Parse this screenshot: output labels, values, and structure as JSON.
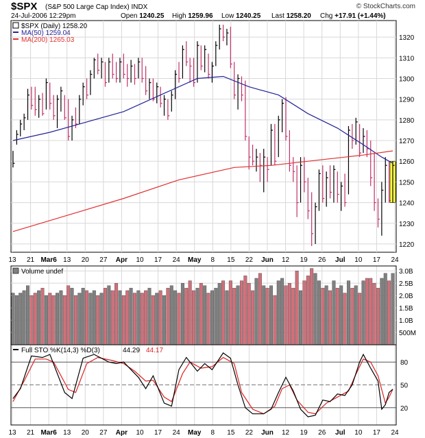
{
  "header": {
    "symbol": "$SPX",
    "name": "(S&P 500 Large Cap Index)",
    "exchange": "INDX",
    "date": "24-Jul-2006 12:29pm",
    "brand": "© StockCharts.com",
    "open_label": "Open",
    "open": "1240.25",
    "high_label": "High",
    "high": "1259.96",
    "low_label": "Low",
    "low": "1240.25",
    "last_label": "Last",
    "last": "1258.20",
    "chg_label": "Chg",
    "chg": "+17.91 (+1.44%)"
  },
  "legend": {
    "price": "$SPX (Daily) 1258.20",
    "ma50": "MA(50) 1259.04",
    "ma200": "MA(200) 1265.03",
    "volume": "Volume undef",
    "sto_prefix": "Full STO %K(14,3) %D(3)",
    "sto_k": "44.29",
    "sto_d": "44.17"
  },
  "colors": {
    "up_bar": "#000000",
    "down_bar": "#c0306a",
    "ma50": "#22229a",
    "ma200": "#e03030",
    "vol_up": "#808080",
    "vol_down": "#d0707a",
    "highlight": "#ffff40",
    "grid": "#d8d8d8"
  },
  "chart_data": {
    "type": "ohlc",
    "price_axis": {
      "ticks": [
        "1220",
        "1230",
        "1240",
        "1250",
        "1260",
        "1270",
        "1280",
        "1290",
        "1300",
        "1310",
        "1320"
      ],
      "range": [
        1216,
        1328
      ]
    },
    "volume_axis": {
      "ticks": [
        "500M",
        "1.0B",
        "1.5B",
        "2.0B",
        "2.5B",
        "3.0B"
      ],
      "range": [
        0,
        3.2
      ]
    },
    "sto_axis": {
      "ticks": [
        "20",
        "50",
        "80"
      ],
      "range": [
        0,
        100
      ]
    },
    "x_ticks": [
      "13",
      "21",
      "Mar6",
      "13",
      "20",
      "27",
      "Apr",
      "10",
      "17",
      "24",
      "May",
      "8",
      "15",
      "22",
      "Jun",
      "12",
      "19",
      "26",
      "Jul",
      "10",
      "17",
      "24"
    ],
    "bars": [
      {
        "h": 1265,
        "l": 1257,
        "c": 1259,
        "v": 2.1
      },
      {
        "h": 1275,
        "l": 1268,
        "c": 1273,
        "v": 2.0
      },
      {
        "h": 1280,
        "l": 1272,
        "c": 1278,
        "v": 2.1
      },
      {
        "h": 1283,
        "l": 1275,
        "c": 1281,
        "v": 2.2
      },
      {
        "h": 1295,
        "l": 1280,
        "c": 1292,
        "v": 2.4
      },
      {
        "h": 1296,
        "l": 1285,
        "c": 1287,
        "v": 2.0
      },
      {
        "h": 1296,
        "l": 1282,
        "c": 1285,
        "v": 2.1
      },
      {
        "h": 1292,
        "l": 1281,
        "c": 1290,
        "v": 2.2
      },
      {
        "h": 1293,
        "l": 1282,
        "c": 1283,
        "v": 2.3
      },
      {
        "h": 1300,
        "l": 1285,
        "c": 1298,
        "v": 2.0
      },
      {
        "h": 1298,
        "l": 1285,
        "c": 1288,
        "v": 2.1
      },
      {
        "h": 1292,
        "l": 1280,
        "c": 1282,
        "v": 2.0
      },
      {
        "h": 1292,
        "l": 1276,
        "c": 1290,
        "v": 2.1
      },
      {
        "h": 1296,
        "l": 1284,
        "c": 1294,
        "v": 2.2
      },
      {
        "h": 1292,
        "l": 1280,
        "c": 1281,
        "v": 2.0
      },
      {
        "h": 1290,
        "l": 1270,
        "c": 1272,
        "v": 2.4
      },
      {
        "h": 1282,
        "l": 1270,
        "c": 1280,
        "v": 2.3
      },
      {
        "h": 1286,
        "l": 1276,
        "c": 1278,
        "v": 2.0
      },
      {
        "h": 1292,
        "l": 1278,
        "c": 1290,
        "v": 2.1
      },
      {
        "h": 1298,
        "l": 1287,
        "c": 1296,
        "v": 2.3
      },
      {
        "h": 1300,
        "l": 1290,
        "c": 1292,
        "v": 2.2
      },
      {
        "h": 1304,
        "l": 1292,
        "c": 1302,
        "v": 2.1
      },
      {
        "h": 1310,
        "l": 1300,
        "c": 1309,
        "v": 2.2
      },
      {
        "h": 1312,
        "l": 1302,
        "c": 1304,
        "v": 2.0
      },
      {
        "h": 1310,
        "l": 1300,
        "c": 1308,
        "v": 2.1
      },
      {
        "h": 1308,
        "l": 1296,
        "c": 1298,
        "v": 2.3
      },
      {
        "h": 1310,
        "l": 1298,
        "c": 1308,
        "v": 2.4
      },
      {
        "h": 1312,
        "l": 1300,
        "c": 1302,
        "v": 2.2
      },
      {
        "h": 1308,
        "l": 1298,
        "c": 1300,
        "v": 2.5
      },
      {
        "h": 1310,
        "l": 1298,
        "c": 1308,
        "v": 2.2
      },
      {
        "h": 1312,
        "l": 1300,
        "c": 1302,
        "v": 2.0
      },
      {
        "h": 1307,
        "l": 1296,
        "c": 1300,
        "v": 2.2
      },
      {
        "h": 1309,
        "l": 1298,
        "c": 1306,
        "v": 2.3
      },
      {
        "h": 1307,
        "l": 1297,
        "c": 1300,
        "v": 2.1
      },
      {
        "h": 1310,
        "l": 1300,
        "c": 1308,
        "v": 2.2
      },
      {
        "h": 1310,
        "l": 1298,
        "c": 1300,
        "v": 2.1
      },
      {
        "h": 1306,
        "l": 1292,
        "c": 1294,
        "v": 2.2
      },
      {
        "h": 1300,
        "l": 1290,
        "c": 1298,
        "v": 2.3
      },
      {
        "h": 1300,
        "l": 1289,
        "c": 1290,
        "v": 2.0
      },
      {
        "h": 1298,
        "l": 1288,
        "c": 1296,
        "v": 2.1
      },
      {
        "h": 1296,
        "l": 1286,
        "c": 1288,
        "v": 2.2
      },
      {
        "h": 1292,
        "l": 1282,
        "c": 1290,
        "v": 2.0
      },
      {
        "h": 1290,
        "l": 1280,
        "c": 1282,
        "v": 2.3
      },
      {
        "h": 1294,
        "l": 1284,
        "c": 1292,
        "v": 2.4
      },
      {
        "h": 1304,
        "l": 1290,
        "c": 1302,
        "v": 2.2
      },
      {
        "h": 1308,
        "l": 1298,
        "c": 1300,
        "v": 2.1
      },
      {
        "h": 1316,
        "l": 1300,
        "c": 1314,
        "v": 2.5
      },
      {
        "h": 1318,
        "l": 1306,
        "c": 1308,
        "v": 2.3
      },
      {
        "h": 1310,
        "l": 1298,
        "c": 1306,
        "v": 2.6
      },
      {
        "h": 1310,
        "l": 1296,
        "c": 1298,
        "v": 2.2
      },
      {
        "h": 1318,
        "l": 1298,
        "c": 1316,
        "v": 2.3
      },
      {
        "h": 1316,
        "l": 1304,
        "c": 1306,
        "v": 2.5
      },
      {
        "h": 1316,
        "l": 1303,
        "c": 1314,
        "v": 2.4
      },
      {
        "h": 1312,
        "l": 1300,
        "c": 1302,
        "v": 2.1
      },
      {
        "h": 1308,
        "l": 1298,
        "c": 1306,
        "v": 2.2
      },
      {
        "h": 1318,
        "l": 1306,
        "c": 1316,
        "v": 2.3
      },
      {
        "h": 1326,
        "l": 1314,
        "c": 1324,
        "v": 2.5
      },
      {
        "h": 1326,
        "l": 1318,
        "c": 1320,
        "v": 2.6
      },
      {
        "h": 1324,
        "l": 1316,
        "c": 1322,
        "v": 2.2
      },
      {
        "h": 1325,
        "l": 1305,
        "c": 1307,
        "v": 2.6
      },
      {
        "h": 1308,
        "l": 1290,
        "c": 1292,
        "v": 2.3
      },
      {
        "h": 1302,
        "l": 1285,
        "c": 1300,
        "v": 2.4
      },
      {
        "h": 1301,
        "l": 1289,
        "c": 1292,
        "v": 2.6
      },
      {
        "h": 1299,
        "l": 1270,
        "c": 1272,
        "v": 2.8
      },
      {
        "h": 1272,
        "l": 1256,
        "c": 1262,
        "v": 2.5
      },
      {
        "h": 1268,
        "l": 1258,
        "c": 1260,
        "v": 2.2
      },
      {
        "h": 1266,
        "l": 1255,
        "c": 1262,
        "v": 2.7
      },
      {
        "h": 1264,
        "l": 1250,
        "c": 1258,
        "v": 2.9
      },
      {
        "h": 1266,
        "l": 1245,
        "c": 1262,
        "v": 2.4
      },
      {
        "h": 1262,
        "l": 1250,
        "c": 1256,
        "v": 2.3
      },
      {
        "h": 1278,
        "l": 1258,
        "c": 1275,
        "v": 2.4
      },
      {
        "h": 1278,
        "l": 1258,
        "c": 1260,
        "v": 2.0
      },
      {
        "h": 1282,
        "l": 1262,
        "c": 1280,
        "v": 2.6
      },
      {
        "h": 1290,
        "l": 1274,
        "c": 1288,
        "v": 2.7
      },
      {
        "h": 1291,
        "l": 1270,
        "c": 1272,
        "v": 2.4
      },
      {
        "h": 1275,
        "l": 1255,
        "c": 1258,
        "v": 2.5
      },
      {
        "h": 1262,
        "l": 1250,
        "c": 1255,
        "v": 2.3
      },
      {
        "h": 1258,
        "l": 1233,
        "c": 1240,
        "v": 3.0
      },
      {
        "h": 1262,
        "l": 1240,
        "c": 1258,
        "v": 2.2
      },
      {
        "h": 1262,
        "l": 1245,
        "c": 1250,
        "v": 2.6
      },
      {
        "h": 1252,
        "l": 1232,
        "c": 1236,
        "v": 2.8
      },
      {
        "h": 1245,
        "l": 1219,
        "c": 1225,
        "v": 3.1
      },
      {
        "h": 1240,
        "l": 1220,
        "c": 1238,
        "v": 2.9
      },
      {
        "h": 1256,
        "l": 1236,
        "c": 1254,
        "v": 2.6
      },
      {
        "h": 1258,
        "l": 1240,
        "c": 1242,
        "v": 2.3
      },
      {
        "h": 1255,
        "l": 1238,
        "c": 1252,
        "v": 2.4
      },
      {
        "h": 1258,
        "l": 1242,
        "c": 1245,
        "v": 2.2
      },
      {
        "h": 1258,
        "l": 1240,
        "c": 1256,
        "v": 2.6
      },
      {
        "h": 1255,
        "l": 1240,
        "c": 1244,
        "v": 2.3
      },
      {
        "h": 1250,
        "l": 1236,
        "c": 1248,
        "v": 2.4
      },
      {
        "h": 1254,
        "l": 1238,
        "c": 1240,
        "v": 2.1
      },
      {
        "h": 1277,
        "l": 1244,
        "c": 1275,
        "v": 2.6
      },
      {
        "h": 1278,
        "l": 1266,
        "c": 1270,
        "v": 2.3
      },
      {
        "h": 1281,
        "l": 1268,
        "c": 1279,
        "v": 2.4
      },
      {
        "h": 1278,
        "l": 1262,
        "c": 1264,
        "v": 2.1
      },
      {
        "h": 1276,
        "l": 1264,
        "c": 1272,
        "v": 2.6
      },
      {
        "h": 1275,
        "l": 1262,
        "c": 1266,
        "v": 2.7
      },
      {
        "h": 1270,
        "l": 1248,
        "c": 1252,
        "v": 2.7
      },
      {
        "h": 1264,
        "l": 1236,
        "c": 1240,
        "v": 2.5
      },
      {
        "h": 1242,
        "l": 1228,
        "c": 1232,
        "v": 2.3
      },
      {
        "h": 1250,
        "l": 1224,
        "c": 1246,
        "v": 2.7
      },
      {
        "h": 1262,
        "l": 1240,
        "c": 1258,
        "v": 2.9
      },
      {
        "h": 1260,
        "l": 1240,
        "c": 1241,
        "v": 2.6
      },
      {
        "h": 1260,
        "l": 1240,
        "c": 1258,
        "v": 2.9
      }
    ],
    "ma50": [
      {
        "i": 0,
        "v": 1270
      },
      {
        "i": 10,
        "v": 1274
      },
      {
        "i": 20,
        "v": 1279
      },
      {
        "i": 30,
        "v": 1284
      },
      {
        "i": 40,
        "v": 1292
      },
      {
        "i": 50,
        "v": 1300
      },
      {
        "i": 57,
        "v": 1301
      },
      {
        "i": 64,
        "v": 1296
      },
      {
        "i": 72,
        "v": 1292
      },
      {
        "i": 80,
        "v": 1283
      },
      {
        "i": 88,
        "v": 1276
      },
      {
        "i": 95,
        "v": 1268
      },
      {
        "i": 100,
        "v": 1262
      },
      {
        "i": 103,
        "v": 1259
      }
    ],
    "ma200": [
      {
        "i": 0,
        "v": 1226
      },
      {
        "i": 15,
        "v": 1234
      },
      {
        "i": 30,
        "v": 1242
      },
      {
        "i": 45,
        "v": 1251
      },
      {
        "i": 60,
        "v": 1257
      },
      {
        "i": 70,
        "v": 1258
      },
      {
        "i": 85,
        "v": 1261
      },
      {
        "i": 95,
        "v": 1263
      },
      {
        "i": 103,
        "v": 1265
      }
    ],
    "sto_k": [
      {
        "i": 0,
        "v": 32
      },
      {
        "i": 2,
        "v": 45
      },
      {
        "i": 5,
        "v": 88
      },
      {
        "i": 8,
        "v": 86
      },
      {
        "i": 10,
        "v": 90
      },
      {
        "i": 14,
        "v": 40
      },
      {
        "i": 16,
        "v": 32
      },
      {
        "i": 19,
        "v": 85
      },
      {
        "i": 22,
        "v": 90
      },
      {
        "i": 26,
        "v": 80
      },
      {
        "i": 28,
        "v": 78
      },
      {
        "i": 30,
        "v": 80
      },
      {
        "i": 32,
        "v": 70
      },
      {
        "i": 34,
        "v": 60
      },
      {
        "i": 36,
        "v": 45
      },
      {
        "i": 38,
        "v": 62
      },
      {
        "i": 41,
        "v": 26
      },
      {
        "i": 43,
        "v": 22
      },
      {
        "i": 45,
        "v": 70
      },
      {
        "i": 47,
        "v": 86
      },
      {
        "i": 50,
        "v": 68
      },
      {
        "i": 52,
        "v": 78
      },
      {
        "i": 54,
        "v": 70
      },
      {
        "i": 57,
        "v": 92
      },
      {
        "i": 59,
        "v": 85
      },
      {
        "i": 61,
        "v": 50
      },
      {
        "i": 63,
        "v": 20
      },
      {
        "i": 65,
        "v": 12
      },
      {
        "i": 68,
        "v": 12
      },
      {
        "i": 70,
        "v": 18
      },
      {
        "i": 72,
        "v": 40
      },
      {
        "i": 74,
        "v": 60
      },
      {
        "i": 76,
        "v": 42
      },
      {
        "i": 78,
        "v": 18
      },
      {
        "i": 80,
        "v": 8
      },
      {
        "i": 82,
        "v": 10
      },
      {
        "i": 84,
        "v": 30
      },
      {
        "i": 86,
        "v": 28
      },
      {
        "i": 88,
        "v": 38
      },
      {
        "i": 90,
        "v": 36
      },
      {
        "i": 92,
        "v": 50
      },
      {
        "i": 94,
        "v": 80
      },
      {
        "i": 95,
        "v": 90
      },
      {
        "i": 97,
        "v": 72
      },
      {
        "i": 99,
        "v": 55
      },
      {
        "i": 100,
        "v": 18
      },
      {
        "i": 101,
        "v": 24
      },
      {
        "i": 102,
        "v": 40
      },
      {
        "i": 103,
        "v": 44.29
      }
    ],
    "sto_d": [
      {
        "i": 0,
        "v": 28
      },
      {
        "i": 3,
        "v": 55
      },
      {
        "i": 6,
        "v": 84
      },
      {
        "i": 9,
        "v": 84
      },
      {
        "i": 11,
        "v": 80
      },
      {
        "i": 15,
        "v": 44
      },
      {
        "i": 17,
        "v": 40
      },
      {
        "i": 20,
        "v": 78
      },
      {
        "i": 23,
        "v": 86
      },
      {
        "i": 27,
        "v": 82
      },
      {
        "i": 30,
        "v": 78
      },
      {
        "i": 33,
        "v": 68
      },
      {
        "i": 36,
        "v": 55
      },
      {
        "i": 38,
        "v": 56
      },
      {
        "i": 41,
        "v": 34
      },
      {
        "i": 43,
        "v": 28
      },
      {
        "i": 46,
        "v": 65
      },
      {
        "i": 48,
        "v": 80
      },
      {
        "i": 51,
        "v": 72
      },
      {
        "i": 54,
        "v": 74
      },
      {
        "i": 57,
        "v": 86
      },
      {
        "i": 60,
        "v": 78
      },
      {
        "i": 62,
        "v": 40
      },
      {
        "i": 65,
        "v": 18
      },
      {
        "i": 68,
        "v": 12
      },
      {
        "i": 71,
        "v": 22
      },
      {
        "i": 73,
        "v": 45
      },
      {
        "i": 75,
        "v": 50
      },
      {
        "i": 77,
        "v": 30
      },
      {
        "i": 80,
        "v": 14
      },
      {
        "i": 82,
        "v": 12
      },
      {
        "i": 85,
        "v": 26
      },
      {
        "i": 88,
        "v": 34
      },
      {
        "i": 91,
        "v": 42
      },
      {
        "i": 93,
        "v": 64
      },
      {
        "i": 95,
        "v": 84
      },
      {
        "i": 97,
        "v": 80
      },
      {
        "i": 99,
        "v": 62
      },
      {
        "i": 101,
        "v": 26
      },
      {
        "i": 102,
        "v": 34
      },
      {
        "i": 103,
        "v": 44.17
      }
    ]
  }
}
